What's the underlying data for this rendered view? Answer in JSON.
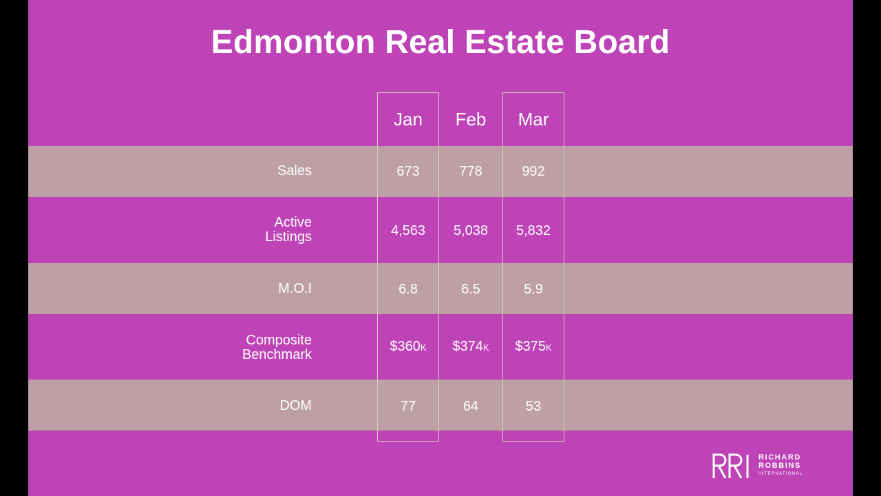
{
  "title": "Edmonton Real Estate Board",
  "columns": [
    "Jan",
    "Feb",
    "Mar"
  ],
  "rows": [
    {
      "label": [
        "Sales"
      ],
      "values": [
        "673",
        "778",
        "992"
      ],
      "unit": ""
    },
    {
      "label": [
        "Active",
        "Listings"
      ],
      "values": [
        "4,563",
        "5,038",
        "5,832"
      ],
      "unit": ""
    },
    {
      "label": [
        "M.O.I"
      ],
      "values": [
        "6.8",
        "6.5",
        "5.9"
      ],
      "unit": ""
    },
    {
      "label": [
        "Composite",
        "Benchmark"
      ],
      "values": [
        "$360",
        "$374",
        "$375"
      ],
      "unit": "K"
    },
    {
      "label": [
        "DOM"
      ],
      "values": [
        "77",
        "64",
        "53"
      ],
      "unit": ""
    }
  ],
  "logo": {
    "line1": "RICHARD",
    "line2": "ROBBINS",
    "line3": "INTERNATIONAL"
  },
  "colors": {
    "slide_bg": "#be43b6",
    "band": "#bd9fa5",
    "column_outline": "#d9cfc0",
    "text": "#ffffff"
  }
}
